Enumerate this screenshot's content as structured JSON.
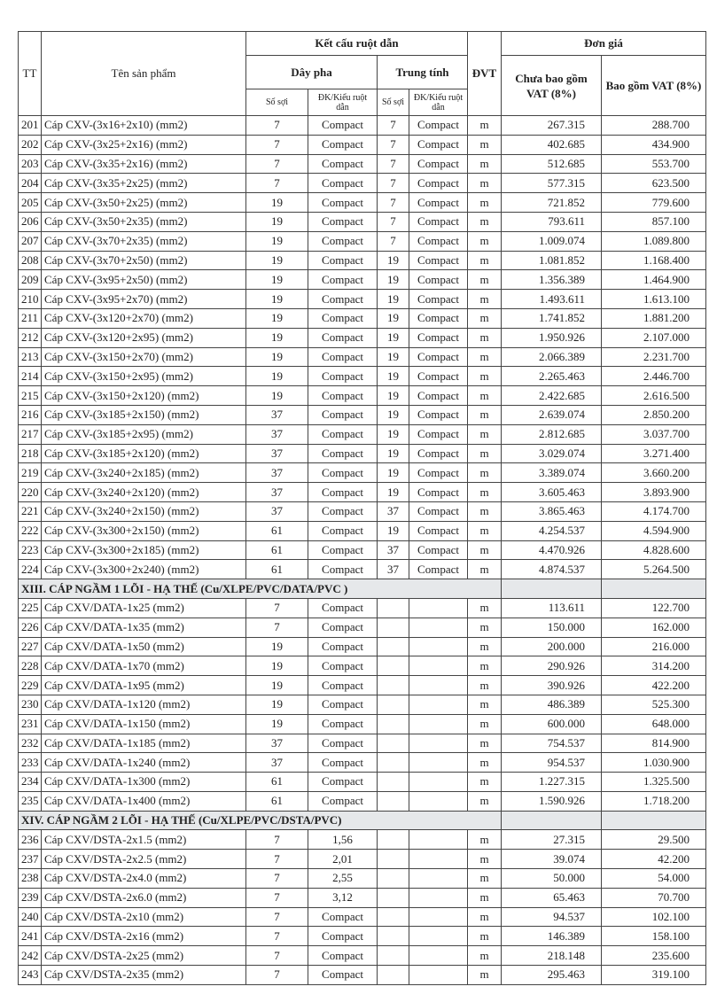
{
  "header": {
    "tt": "TT",
    "name": "Tên sản phẩm",
    "structure": "Kết cấu ruột dẫn",
    "phase": "Dây pha",
    "neutral": "Trung tính",
    "unit": "ĐVT",
    "price": "Đơn giá",
    "price_ex": "Chưa bao gồm VAT (8%)",
    "price_inc": "Bao gồm VAT (8%)",
    "strands": "Số sợi",
    "dk": "ĐK/Kiểu ruột dẫn"
  },
  "rows": [
    [
      "201",
      "Cáp CXV-(3x16+2x10) (mm2)",
      "7",
      "Compact",
      "7",
      "Compact",
      "m",
      "267.315",
      "288.700"
    ],
    [
      "202",
      "Cáp CXV-(3x25+2x16) (mm2)",
      "7",
      "Compact",
      "7",
      "Compact",
      "m",
      "402.685",
      "434.900"
    ],
    [
      "203",
      "Cáp CXV-(3x35+2x16) (mm2)",
      "7",
      "Compact",
      "7",
      "Compact",
      "m",
      "512.685",
      "553.700"
    ],
    [
      "204",
      "Cáp CXV-(3x35+2x25) (mm2)",
      "7",
      "Compact",
      "7",
      "Compact",
      "m",
      "577.315",
      "623.500"
    ],
    [
      "205",
      "Cáp CXV-(3x50+2x25) (mm2)",
      "19",
      "Compact",
      "7",
      "Compact",
      "m",
      "721.852",
      "779.600"
    ],
    [
      "206",
      "Cáp CXV-(3x50+2x35) (mm2)",
      "19",
      "Compact",
      "7",
      "Compact",
      "m",
      "793.611",
      "857.100"
    ],
    [
      "207",
      "Cáp CXV-(3x70+2x35) (mm2)",
      "19",
      "Compact",
      "7",
      "Compact",
      "m",
      "1.009.074",
      "1.089.800"
    ],
    [
      "208",
      "Cáp CXV-(3x70+2x50) (mm2)",
      "19",
      "Compact",
      "19",
      "Compact",
      "m",
      "1.081.852",
      "1.168.400"
    ],
    [
      "209",
      "Cáp CXV-(3x95+2x50) (mm2)",
      "19",
      "Compact",
      "19",
      "Compact",
      "m",
      "1.356.389",
      "1.464.900"
    ],
    [
      "210",
      "Cáp CXV-(3x95+2x70) (mm2)",
      "19",
      "Compact",
      "19",
      "Compact",
      "m",
      "1.493.611",
      "1.613.100"
    ],
    [
      "211",
      "Cáp CXV-(3x120+2x70) (mm2)",
      "19",
      "Compact",
      "19",
      "Compact",
      "m",
      "1.741.852",
      "1.881.200"
    ],
    [
      "212",
      "Cáp CXV-(3x120+2x95) (mm2)",
      "19",
      "Compact",
      "19",
      "Compact",
      "m",
      "1.950.926",
      "2.107.000"
    ],
    [
      "213",
      "Cáp CXV-(3x150+2x70) (mm2)",
      "19",
      "Compact",
      "19",
      "Compact",
      "m",
      "2.066.389",
      "2.231.700"
    ],
    [
      "214",
      "Cáp CXV-(3x150+2x95) (mm2)",
      "19",
      "Compact",
      "19",
      "Compact",
      "m",
      "2.265.463",
      "2.446.700"
    ],
    [
      "215",
      "Cáp CXV-(3x150+2x120) (mm2)",
      "19",
      "Compact",
      "19",
      "Compact",
      "m",
      "2.422.685",
      "2.616.500"
    ],
    [
      "216",
      "Cáp CXV-(3x185+2x150) (mm2)",
      "37",
      "Compact",
      "19",
      "Compact",
      "m",
      "2.639.074",
      "2.850.200"
    ],
    [
      "217",
      "Cáp CXV-(3x185+2x95) (mm2)",
      "37",
      "Compact",
      "19",
      "Compact",
      "m",
      "2.812.685",
      "3.037.700"
    ],
    [
      "218",
      "Cáp CXV-(3x185+2x120) (mm2)",
      "37",
      "Compact",
      "19",
      "Compact",
      "m",
      "3.029.074",
      "3.271.400"
    ],
    [
      "219",
      "Cáp CXV-(3x240+2x185) (mm2)",
      "37",
      "Compact",
      "19",
      "Compact",
      "m",
      "3.389.074",
      "3.660.200"
    ],
    [
      "220",
      "Cáp CXV-(3x240+2x120) (mm2)",
      "37",
      "Compact",
      "19",
      "Compact",
      "m",
      "3.605.463",
      "3.893.900"
    ],
    [
      "221",
      "Cáp CXV-(3x240+2x150) (mm2)",
      "37",
      "Compact",
      "37",
      "Compact",
      "m",
      "3.865.463",
      "4.174.700"
    ],
    [
      "222",
      "Cáp CXV-(3x300+2x150) (mm2)",
      "61",
      "Compact",
      "19",
      "Compact",
      "m",
      "4.254.537",
      "4.594.900"
    ],
    [
      "223",
      "Cáp CXV-(3x300+2x185) (mm2)",
      "61",
      "Compact",
      "37",
      "Compact",
      "m",
      "4.470.926",
      "4.828.600"
    ],
    [
      "224",
      "Cáp CXV-(3x300+2x240) (mm2)",
      "61",
      "Compact",
      "37",
      "Compact",
      "m",
      "4.874.537",
      "5.264.500"
    ],
    {
      "section": "XIII. CÁP NGẦM 1 LÕI - HẠ THẾ  (Cu/XLPE/PVC/DATA/PVC )"
    },
    [
      "225",
      "Cáp CXV/DATA-1x25 (mm2)",
      "7",
      "Compact",
      "",
      "",
      "m",
      "113.611",
      "122.700"
    ],
    [
      "226",
      "Cáp CXV/DATA-1x35 (mm2)",
      "7",
      "Compact",
      "",
      "",
      "m",
      "150.000",
      "162.000"
    ],
    [
      "227",
      "Cáp CXV/DATA-1x50 (mm2)",
      "19",
      "Compact",
      "",
      "",
      "m",
      "200.000",
      "216.000"
    ],
    [
      "228",
      "Cáp CXV/DATA-1x70 (mm2)",
      "19",
      "Compact",
      "",
      "",
      "m",
      "290.926",
      "314.200"
    ],
    [
      "229",
      "Cáp CXV/DATA-1x95 (mm2)",
      "19",
      "Compact",
      "",
      "",
      "m",
      "390.926",
      "422.200"
    ],
    [
      "230",
      "Cáp CXV/DATA-1x120 (mm2)",
      "19",
      "Compact",
      "",
      "",
      "m",
      "486.389",
      "525.300"
    ],
    [
      "231",
      "Cáp CXV/DATA-1x150 (mm2)",
      "19",
      "Compact",
      "",
      "",
      "m",
      "600.000",
      "648.000"
    ],
    [
      "232",
      "Cáp CXV/DATA-1x185 (mm2)",
      "37",
      "Compact",
      "",
      "",
      "m",
      "754.537",
      "814.900"
    ],
    [
      "233",
      "Cáp CXV/DATA-1x240 (mm2)",
      "37",
      "Compact",
      "",
      "",
      "m",
      "954.537",
      "1.030.900"
    ],
    [
      "234",
      "Cáp CXV/DATA-1x300 (mm2)",
      "61",
      "Compact",
      "",
      "",
      "m",
      "1.227.315",
      "1.325.500"
    ],
    [
      "235",
      "Cáp CXV/DATA-1x400 (mm2)",
      "61",
      "Compact",
      "",
      "",
      "m",
      "1.590.926",
      "1.718.200"
    ],
    {
      "section": "XIV. CÁP NGẦM 2 LÕI - HẠ THẾ  (Cu/XLPE/PVC/DSTA/PVC)"
    },
    [
      "236",
      "Cáp CXV/DSTA-2x1.5 (mm2)",
      "7",
      "1,56",
      "",
      "",
      "m",
      "27.315",
      "29.500"
    ],
    [
      "237",
      "Cáp CXV/DSTA-2x2.5 (mm2)",
      "7",
      "2,01",
      "",
      "",
      "m",
      "39.074",
      "42.200"
    ],
    [
      "238",
      "Cáp CXV/DSTA-2x4.0 (mm2)",
      "7",
      "2,55",
      "",
      "",
      "m",
      "50.000",
      "54.000"
    ],
    [
      "239",
      "Cáp CXV/DSTA-2x6.0 (mm2)",
      "7",
      "3,12",
      "",
      "",
      "m",
      "65.463",
      "70.700"
    ],
    [
      "240",
      "Cáp CXV/DSTA-2x10 (mm2)",
      "7",
      "Compact",
      "",
      "",
      "m",
      "94.537",
      "102.100"
    ],
    [
      "241",
      "Cáp CXV/DSTA-2x16 (mm2)",
      "7",
      "Compact",
      "",
      "",
      "m",
      "146.389",
      "158.100"
    ],
    [
      "242",
      "Cáp CXV/DSTA-2x25 (mm2)",
      "7",
      "Compact",
      "",
      "",
      "m",
      "218.148",
      "235.600"
    ],
    [
      "243",
      "Cáp CXV/DSTA-2x35 (mm2)",
      "7",
      "Compact",
      "",
      "",
      "m",
      "295.463",
      "319.100"
    ]
  ]
}
